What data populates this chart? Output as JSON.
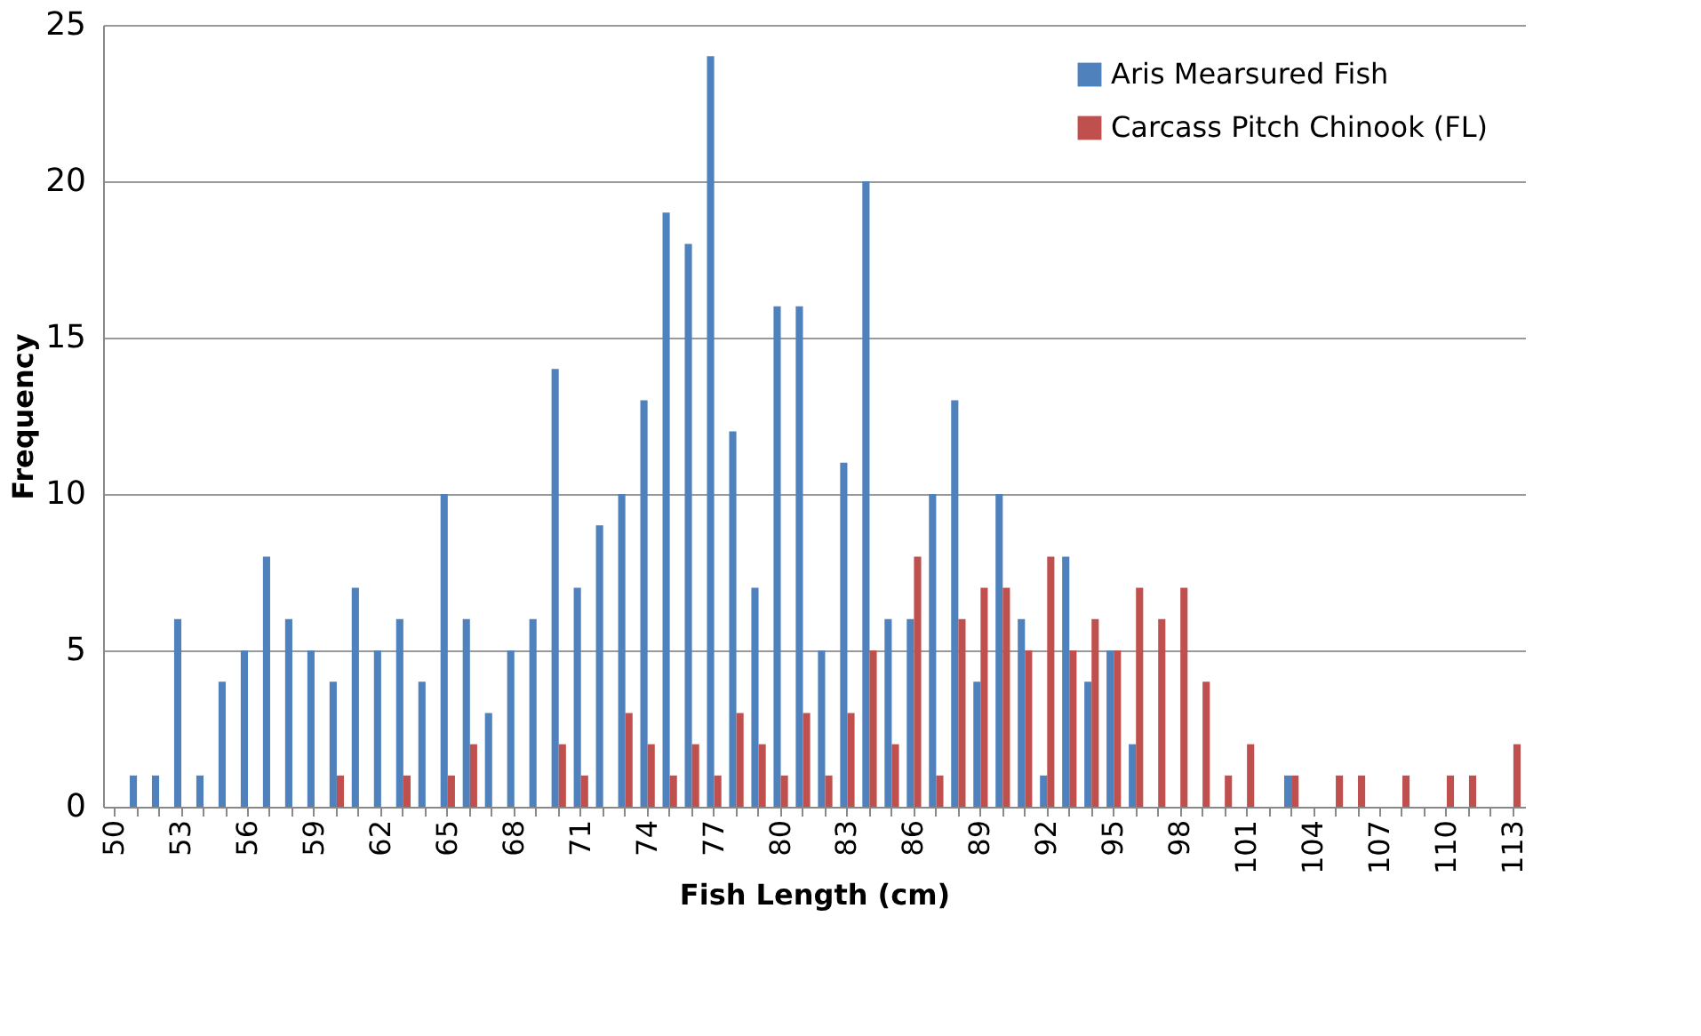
{
  "chart_data": {
    "type": "bar",
    "xlabel": "Fish Length (cm)",
    "ylabel": "Frequency",
    "categories": [
      "50",
      null,
      null,
      "53",
      null,
      null,
      "56",
      null,
      null,
      "59",
      null,
      null,
      "62",
      null,
      null,
      "65",
      null,
      null,
      "68",
      null,
      null,
      "71",
      null,
      null,
      "74",
      null,
      null,
      "77",
      null,
      null,
      "80",
      null,
      null,
      "83",
      null,
      null,
      "86",
      null,
      null,
      "89",
      null,
      null,
      "92",
      null,
      null,
      "95",
      null,
      null,
      "98",
      null,
      null,
      "101",
      null,
      null,
      "104",
      null,
      null,
      "107",
      null,
      null,
      "110",
      null,
      null,
      "113"
    ],
    "series": [
      {
        "name": "Aris Mearsured Fish",
        "color": "#4f81bd",
        "values": [
          0,
          1,
          1,
          6,
          1,
          4,
          5,
          8,
          6,
          5,
          4,
          7,
          5,
          6,
          4,
          10,
          6,
          3,
          5,
          6,
          14,
          7,
          9,
          10,
          13,
          19,
          18,
          24,
          12,
          7,
          16,
          16,
          5,
          11,
          20,
          6,
          6,
          10,
          13,
          4,
          10,
          6,
          1,
          8,
          4,
          5,
          2,
          0,
          0,
          0,
          0,
          0,
          0,
          1,
          0,
          0,
          0,
          0,
          0,
          0,
          0,
          0,
          0,
          0
        ]
      },
      {
        "name": "Carcass Pitch Chinook (FL)",
        "color": "#c0504d",
        "values": [
          0,
          0,
          0,
          0,
          0,
          0,
          0,
          0,
          0,
          0,
          1,
          0,
          0,
          1,
          0,
          1,
          2,
          0,
          0,
          0,
          2,
          1,
          0,
          3,
          2,
          1,
          2,
          1,
          3,
          2,
          1,
          3,
          1,
          3,
          5,
          2,
          8,
          1,
          6,
          7,
          7,
          5,
          8,
          5,
          6,
          5,
          7,
          6,
          7,
          4,
          1,
          2,
          0,
          1,
          0,
          1,
          1,
          0,
          1,
          0,
          1,
          1,
          0,
          2
        ]
      }
    ],
    "ylim": [
      0,
      25
    ],
    "yticks": [
      0,
      5,
      10,
      15,
      20,
      25
    ],
    "grid": "y",
    "legend": "top right"
  }
}
